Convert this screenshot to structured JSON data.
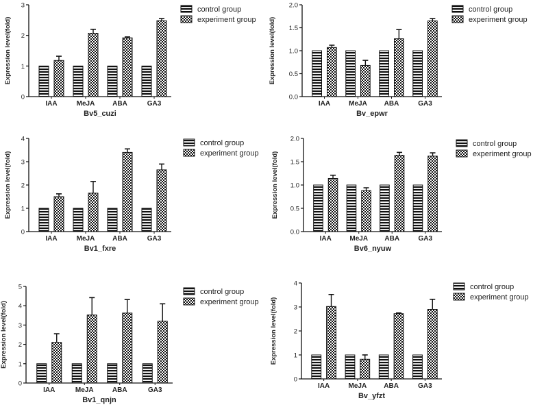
{
  "chart_data": [
    {
      "type": "bar",
      "title": "Bv5_cuzi",
      "ylabel": "Expression level(fold)",
      "categories": [
        "IAA",
        "MeJA",
        "ABA",
        "GA3"
      ],
      "ylim": [
        0,
        3
      ],
      "yticks": [
        "0",
        "1",
        "2",
        "3"
      ],
      "legend": "top-right",
      "series": [
        {
          "name": "control group",
          "pattern": "stripes",
          "values": [
            1,
            1,
            1,
            1
          ],
          "errors": [
            0,
            0,
            0,
            0
          ]
        },
        {
          "name": "experiment group",
          "pattern": "checker",
          "values": [
            1.18,
            2.07,
            1.92,
            2.48
          ],
          "errors": [
            0.14,
            0.13,
            0.03,
            0.07
          ]
        }
      ]
    },
    {
      "type": "bar",
      "title": "Bv_epwr",
      "ylabel": "Expression level(fold)",
      "categories": [
        "IAA",
        "MeJA",
        "ABA",
        "GA3"
      ],
      "ylim": [
        0,
        2
      ],
      "yticks": [
        "0.0",
        "0.5",
        "1.0",
        "1.5",
        "2.0"
      ],
      "legend": "top-right",
      "series": [
        {
          "name": "control group",
          "pattern": "stripes",
          "values": [
            1,
            1,
            1,
            1
          ],
          "errors": [
            0,
            0,
            0,
            0
          ]
        },
        {
          "name": "experiment group",
          "pattern": "checker",
          "values": [
            1.07,
            0.68,
            1.26,
            1.65
          ],
          "errors": [
            0.05,
            0.11,
            0.2,
            0.05
          ]
        }
      ]
    },
    {
      "type": "bar",
      "title": "Bv1_fxre",
      "ylabel": "Expression level(fold)",
      "categories": [
        "IAA",
        "MeJA",
        "ABA",
        "GA3"
      ],
      "ylim": [
        0,
        4
      ],
      "yticks": [
        "0",
        "1",
        "2",
        "3",
        "4"
      ],
      "legend": "top-right",
      "series": [
        {
          "name": "control group",
          "pattern": "stripes",
          "values": [
            1,
            1,
            1,
            1
          ],
          "errors": [
            0,
            0,
            0,
            0
          ]
        },
        {
          "name": "experiment group",
          "pattern": "checker",
          "values": [
            1.5,
            1.65,
            3.4,
            2.65
          ],
          "errors": [
            0.12,
            0.5,
            0.15,
            0.25
          ]
        }
      ]
    },
    {
      "type": "bar",
      "title": "Bv6_nyuw",
      "ylabel": "Expression level(fold)",
      "categories": [
        "IAA",
        "MeJA",
        "ABA",
        "GA3"
      ],
      "ylim": [
        0,
        2
      ],
      "yticks": [
        "0.0",
        "0.5",
        "1.0",
        "1.5",
        "2.0"
      ],
      "legend": "top-right",
      "series": [
        {
          "name": "control group",
          "pattern": "stripes",
          "values": [
            1,
            1,
            1,
            1
          ],
          "errors": [
            0,
            0,
            0,
            0
          ]
        },
        {
          "name": "experiment group",
          "pattern": "checker",
          "values": [
            1.14,
            0.88,
            1.64,
            1.62
          ],
          "errors": [
            0.07,
            0.06,
            0.06,
            0.07
          ]
        }
      ]
    },
    {
      "type": "bar",
      "title": "Bv1_qnjn",
      "ylabel": "Expression level(fold)",
      "categories": [
        "IAA",
        "MeJA",
        "ABA",
        "GA3"
      ],
      "ylim": [
        0,
        5
      ],
      "yticks": [
        "0",
        "1",
        "2",
        "3",
        "4",
        "5"
      ],
      "legend": "top-right",
      "series": [
        {
          "name": "control group",
          "pattern": "stripes",
          "values": [
            1,
            1,
            1,
            1
          ],
          "errors": [
            0,
            0,
            0,
            0
          ]
        },
        {
          "name": "experiment group",
          "pattern": "checker",
          "values": [
            2.1,
            3.52,
            3.62,
            3.2
          ],
          "errors": [
            0.45,
            0.9,
            0.7,
            0.9
          ]
        }
      ]
    },
    {
      "type": "bar",
      "title": "Bv_yfzt",
      "ylabel": "Expression level(fold)",
      "categories": [
        "IAA",
        "MeJA",
        "ABA",
        "GA3"
      ],
      "ylim": [
        0,
        4
      ],
      "yticks": [
        "0",
        "1",
        "2",
        "3",
        "4"
      ],
      "legend": "top-right",
      "series": [
        {
          "name": "control group",
          "pattern": "stripes",
          "values": [
            1,
            1,
            1,
            1
          ],
          "errors": [
            0,
            0,
            0,
            0
          ]
        },
        {
          "name": "experiment group",
          "pattern": "checker",
          "values": [
            3.02,
            0.82,
            2.72,
            2.9
          ],
          "errors": [
            0.5,
            0.18,
            0.03,
            0.42
          ]
        }
      ]
    }
  ]
}
